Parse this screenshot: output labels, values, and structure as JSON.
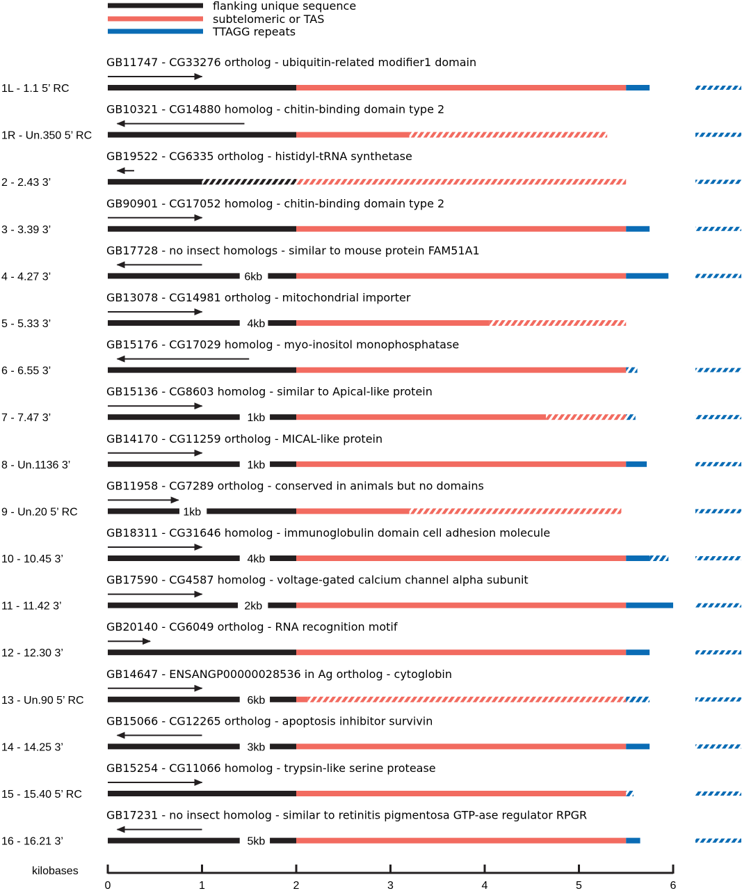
{
  "legend": [
    {
      "label": "flanking unique sequence",
      "kind": "flank"
    },
    {
      "label": "subtelomeric or TAS",
      "kind": "tas"
    },
    {
      "label": "TTAGG repeats",
      "kind": "ttagg"
    }
  ],
  "colors": {
    "flank": "#231f20",
    "tas": "#f26b60",
    "ttagg": "#0a6cb5"
  },
  "rows": [
    {
      "label": "1L - 1.1 5’ RC",
      "gene": "GB11747 - CG33276 ortholog - ubiquitin-related modifier1 domain",
      "arrow": {
        "dir": "right",
        "from": 0,
        "to": 1.0
      },
      "segments": [
        {
          "kind": "flank",
          "from": 0,
          "to": 2.0
        },
        {
          "kind": "tas",
          "from": 2.0,
          "to": 5.5
        },
        {
          "kind": "ttagg",
          "from": 5.5,
          "to": 5.75
        }
      ],
      "far_ttagg": true
    },
    {
      "label": "1R - Un.350 5’ RC",
      "gene": "GB10321 -  CG14880 homolog - chitin-binding domain type 2",
      "arrow": {
        "dir": "left",
        "from": 0.1,
        "to": 1.45
      },
      "segments": [
        {
          "kind": "flank",
          "from": 0,
          "to": 2.0
        },
        {
          "kind": "tas",
          "from": 2.0,
          "to": 3.2
        },
        {
          "kind": "tas-dashed",
          "from": 3.2,
          "to": 5.3
        }
      ],
      "far_ttagg": true
    },
    {
      "label": "2 - 2.43 3’",
      "gene": "GB19522 - CG6335 ortholog - histidyl-tRNA synthetase",
      "arrow": {
        "dir": "left",
        "from": 0.1,
        "to": 0.28
      },
      "segments": [
        {
          "kind": "flank",
          "from": 0,
          "to": 1.0
        },
        {
          "kind": "flank-dashed",
          "from": 1.0,
          "to": 2.0
        },
        {
          "kind": "tas-dashed",
          "from": 2.0,
          "to": 5.5
        }
      ],
      "far_ttagg": true
    },
    {
      "label": "3 - 3.39 3’",
      "gene": "GB90901 - CG17052 homolog - chitin-binding domain type 2",
      "arrow": {
        "dir": "right",
        "from": 0,
        "to": 1.0
      },
      "segments": [
        {
          "kind": "flank",
          "from": 0,
          "to": 2.0
        },
        {
          "kind": "tas",
          "from": 2.0,
          "to": 5.5
        },
        {
          "kind": "ttagg",
          "from": 5.5,
          "to": 5.75
        }
      ],
      "far_ttagg": true
    },
    {
      "label": "4 - 4.27 3’",
      "gene": "GB17728 - no insect homologs - similar to mouse protein FAM51A1",
      "arrow": {
        "dir": "left",
        "from": 0.1,
        "to": 1.0
      },
      "gap": {
        "at": 1.42,
        "label": "6kb"
      },
      "segments": [
        {
          "kind": "flank",
          "from": 0,
          "to": 1.4
        },
        {
          "kind": "flank",
          "from": 1.7,
          "to": 2.0
        },
        {
          "kind": "tas",
          "from": 2.0,
          "to": 5.5
        },
        {
          "kind": "ttagg",
          "from": 5.5,
          "to": 5.95
        }
      ],
      "far_ttagg": true
    },
    {
      "label": "5 - 5.33 3’",
      "gene": "GB13078 - CG14981 ortholog - mitochondrial importer",
      "arrow": {
        "dir": "right",
        "from": 0,
        "to": 1.0
      },
      "gap": {
        "at": 1.45,
        "label": "4kb"
      },
      "segments": [
        {
          "kind": "flank",
          "from": 0,
          "to": 1.4
        },
        {
          "kind": "flank",
          "from": 1.7,
          "to": 2.0
        },
        {
          "kind": "tas",
          "from": 2.0,
          "to": 4.05
        },
        {
          "kind": "tas-dashed",
          "from": 4.05,
          "to": 5.5
        }
      ],
      "far_ttagg": false
    },
    {
      "label": "6 - 6.55 3’",
      "gene": "GB15176 - CG17029 homolog - myo-inositol monophosphatase",
      "arrow": {
        "dir": "left",
        "from": 0.1,
        "to": 1.5
      },
      "segments": [
        {
          "kind": "flank",
          "from": 0,
          "to": 2.0
        },
        {
          "kind": "tas",
          "from": 2.0,
          "to": 5.5
        },
        {
          "kind": "ttagg-dashed",
          "from": 5.5,
          "to": 5.62
        }
      ],
      "far_ttagg": true
    },
    {
      "label": "7 - 7.47 3’",
      "gene": "GB15136 -  CG8603 homolog - similar to Apical-like protein",
      "arrow": {
        "dir": "right",
        "from": 0,
        "to": 1.0
      },
      "gap": {
        "at": 1.45,
        "label": "1kb"
      },
      "segments": [
        {
          "kind": "flank",
          "from": 0,
          "to": 1.4
        },
        {
          "kind": "flank",
          "from": 1.72,
          "to": 2.0
        },
        {
          "kind": "tas",
          "from": 2.0,
          "to": 4.65
        },
        {
          "kind": "tas-dashed",
          "from": 4.65,
          "to": 5.5
        },
        {
          "kind": "ttagg-dashed",
          "from": 5.5,
          "to": 5.6
        }
      ],
      "far_ttagg": true
    },
    {
      "label": "8 - Un.1136 3’",
      "gene": "GB14170 -  CG11259 ortholog - MICAL-like protein",
      "arrow": {
        "dir": "right",
        "from": 0,
        "to": 1.0
      },
      "gap": {
        "at": 1.45,
        "label": "1kb"
      },
      "segments": [
        {
          "kind": "flank",
          "from": 0,
          "to": 1.4
        },
        {
          "kind": "flank",
          "from": 1.72,
          "to": 2.0
        },
        {
          "kind": "tas",
          "from": 2.0,
          "to": 5.5
        },
        {
          "kind": "ttagg",
          "from": 5.5,
          "to": 5.72
        }
      ],
      "far_ttagg": true
    },
    {
      "label": "9 - Un.20  5’ RC",
      "gene": "GB11958 - CG7289 ortholog - conserved in animals but no domains",
      "arrow": {
        "dir": "right",
        "from": 0,
        "to": 0.75
      },
      "gap": {
        "at": 0.77,
        "label": "1kb"
      },
      "segments": [
        {
          "kind": "flank",
          "from": 0,
          "to": 0.76
        },
        {
          "kind": "flank",
          "from": 1.05,
          "to": 2.0
        },
        {
          "kind": "tas",
          "from": 2.0,
          "to": 3.2
        },
        {
          "kind": "tas-dashed",
          "from": 3.2,
          "to": 5.45
        }
      ],
      "far_ttagg": true
    },
    {
      "label": "10 - 10.45 3’",
      "gene": "GB18311 -  CG31646 homolog - immunoglobulin domain cell adhesion molecule",
      "arrow": {
        "dir": "right",
        "from": 0,
        "to": 1.0
      },
      "gap": {
        "at": 1.45,
        "label": "4kb"
      },
      "segments": [
        {
          "kind": "flank",
          "from": 0,
          "to": 1.4
        },
        {
          "kind": "flank",
          "from": 1.72,
          "to": 2.0
        },
        {
          "kind": "tas",
          "from": 2.0,
          "to": 5.5
        },
        {
          "kind": "ttagg",
          "from": 5.5,
          "to": 5.75
        },
        {
          "kind": "ttagg-dashed",
          "from": 5.75,
          "to": 5.95
        }
      ],
      "far_ttagg": true
    },
    {
      "label": "11 - 11.42 3’",
      "gene": "GB17590 - CG4587 homolog - voltage-gated calcium channel alpha subunit",
      "arrow": {
        "dir": "right",
        "from": 0,
        "to": 1.0
      },
      "gap": {
        "at": 1.42,
        "label": "2kb"
      },
      "segments": [
        {
          "kind": "flank",
          "from": 0,
          "to": 1.38
        },
        {
          "kind": "flank",
          "from": 1.7,
          "to": 2.0
        },
        {
          "kind": "tas",
          "from": 2.0,
          "to": 5.5
        },
        {
          "kind": "ttagg",
          "from": 5.5,
          "to": 6.0
        }
      ],
      "far_ttagg": true
    },
    {
      "label": "12 - 12.30 3’",
      "gene": "GB20140 - CG6049 ortholog - RNA recognition motif",
      "arrow": {
        "dir": "right",
        "from": 0,
        "to": 0.45
      },
      "segments": [
        {
          "kind": "flank",
          "from": 0,
          "to": 2.0
        },
        {
          "kind": "tas",
          "from": 2.0,
          "to": 5.5
        },
        {
          "kind": "ttagg",
          "from": 5.5,
          "to": 5.75
        }
      ],
      "far_ttagg": true
    },
    {
      "label": "13 - Un.90 5’ RC",
      "gene": "GB14647 - ENSANGP00000028536 in Ag ortholog - cytoglobin",
      "arrow": {
        "dir": "right",
        "from": 0,
        "to": 1.0
      },
      "gap": {
        "at": 1.45,
        "label": "6kb"
      },
      "segments": [
        {
          "kind": "flank",
          "from": 0,
          "to": 1.4
        },
        {
          "kind": "flank",
          "from": 1.72,
          "to": 2.0
        },
        {
          "kind": "tas",
          "from": 2.0,
          "to": 2.12
        },
        {
          "kind": "tas-dashed",
          "from": 2.12,
          "to": 5.5
        },
        {
          "kind": "ttagg-dashed",
          "from": 5.5,
          "to": 5.75
        }
      ],
      "far_ttagg": true
    },
    {
      "label": "14 - 14.25 3’",
      "gene": "GB15066 - CG12265 ortholog - apoptosis inhibitor survivin",
      "arrow": {
        "dir": "left",
        "from": 0.1,
        "to": 1.0
      },
      "gap": {
        "at": 1.45,
        "label": "3kb"
      },
      "segments": [
        {
          "kind": "flank",
          "from": 0,
          "to": 1.4
        },
        {
          "kind": "flank",
          "from": 1.72,
          "to": 2.0
        },
        {
          "kind": "tas",
          "from": 2.0,
          "to": 5.5
        },
        {
          "kind": "ttagg",
          "from": 5.5,
          "to": 5.75
        }
      ],
      "far_ttagg": true
    },
    {
      "label": "15 - 15.40 5’ RC",
      "gene": "GB15254 - CG11066 homolog - trypsin-like serine protease",
      "arrow": {
        "dir": "right",
        "from": 0,
        "to": 1.0
      },
      "segments": [
        {
          "kind": "flank",
          "from": 0,
          "to": 2.0
        },
        {
          "kind": "tas",
          "from": 2.0,
          "to": 5.5
        },
        {
          "kind": "ttagg-dashed",
          "from": 5.5,
          "to": 5.58
        }
      ],
      "far_ttagg": true
    },
    {
      "label": "16 - 16.21 3’",
      "gene": "GB17231 - no insect homolog - similar to retinitis pigmentosa GTP-ase regulator RPGR",
      "arrow": {
        "dir": "left",
        "from": 0.1,
        "to": 1.0
      },
      "gap": {
        "at": 1.45,
        "label": "5kb"
      },
      "segments": [
        {
          "kind": "flank",
          "from": 0,
          "to": 1.4
        },
        {
          "kind": "flank",
          "from": 1.72,
          "to": 2.0
        },
        {
          "kind": "tas",
          "from": 2.0,
          "to": 5.5
        },
        {
          "kind": "ttagg",
          "from": 5.5,
          "to": 5.65
        }
      ],
      "far_ttagg": true
    }
  ],
  "axis": {
    "label": "kilobases",
    "ticks": [
      "0",
      "1",
      "2",
      "3",
      "4",
      "5",
      "6"
    ]
  }
}
